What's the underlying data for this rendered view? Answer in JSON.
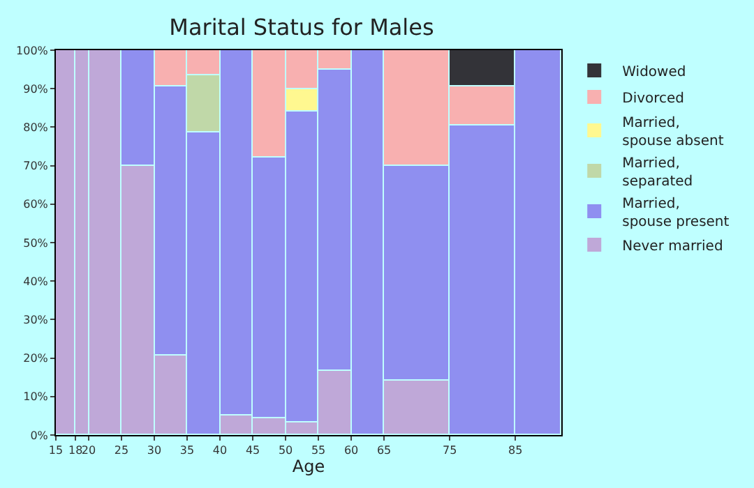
{
  "chart_data": {
    "type": "bar",
    "stacked": true,
    "title": "Marital Status for Males",
    "xlabel": "Age",
    "x": [
      16.5,
      19,
      22.5,
      27.5,
      32.5,
      37.5,
      42.5,
      47.5,
      52.5,
      57.5,
      62.5,
      70,
      80,
      88.5
    ],
    "xlim": [
      15,
      92
    ],
    "xticks": [
      15,
      18,
      20,
      25,
      30,
      35,
      40,
      45,
      50,
      55,
      60,
      65,
      75,
      85
    ],
    "ylim": [
      0,
      100
    ],
    "yticks": [
      {
        "value": 0,
        "label": "0%"
      },
      {
        "value": 10,
        "label": "10%"
      },
      {
        "value": 20,
        "label": "20%"
      },
      {
        "value": 30,
        "label": "30%"
      },
      {
        "value": 40,
        "label": "40%"
      },
      {
        "value": 50,
        "label": "50%"
      },
      {
        "value": 60,
        "label": "60%"
      },
      {
        "value": 70,
        "label": "70%"
      },
      {
        "value": 80,
        "label": "80%"
      },
      {
        "value": 90,
        "label": "90%"
      },
      {
        "value": 100,
        "label": "100%"
      }
    ],
    "series": [
      {
        "name": "Never married",
        "color": "#bfa8d8",
        "values": [
          100,
          100,
          100,
          70,
          20.5,
          null,
          5,
          4.4,
          3.4,
          16.5,
          null,
          14,
          null,
          null
        ]
      },
      {
        "name": "Married, spouse present",
        "color": "#8f8ff0",
        "values": [
          null,
          null,
          null,
          30,
          70.1,
          78.8,
          95,
          67.8,
          80.6,
          78.5,
          100,
          56,
          80.3,
          100
        ]
      },
      {
        "name": "Married, separated",
        "color": "#c0d8a8",
        "values": [
          null,
          null,
          null,
          null,
          null,
          14.5,
          null,
          null,
          null,
          null,
          null,
          null,
          null,
          null
        ]
      },
      {
        "name": "Married, spouse absent",
        "color": "#fff890",
        "values": [
          null,
          null,
          null,
          null,
          null,
          null,
          null,
          null,
          5.9,
          null,
          null,
          null,
          null,
          null
        ]
      },
      {
        "name": "Divorced",
        "color": "#f8b0b0",
        "values": [
          null,
          null,
          null,
          null,
          9.4,
          6.7,
          null,
          27.8,
          10.1,
          5,
          null,
          30,
          10.3,
          null
        ]
      },
      {
        "name": "Widowed",
        "color": "#333338",
        "values": [
          null,
          null,
          null,
          null,
          null,
          null,
          null,
          null,
          null,
          null,
          null,
          null,
          9.4,
          null
        ]
      }
    ],
    "legend": "right"
  }
}
